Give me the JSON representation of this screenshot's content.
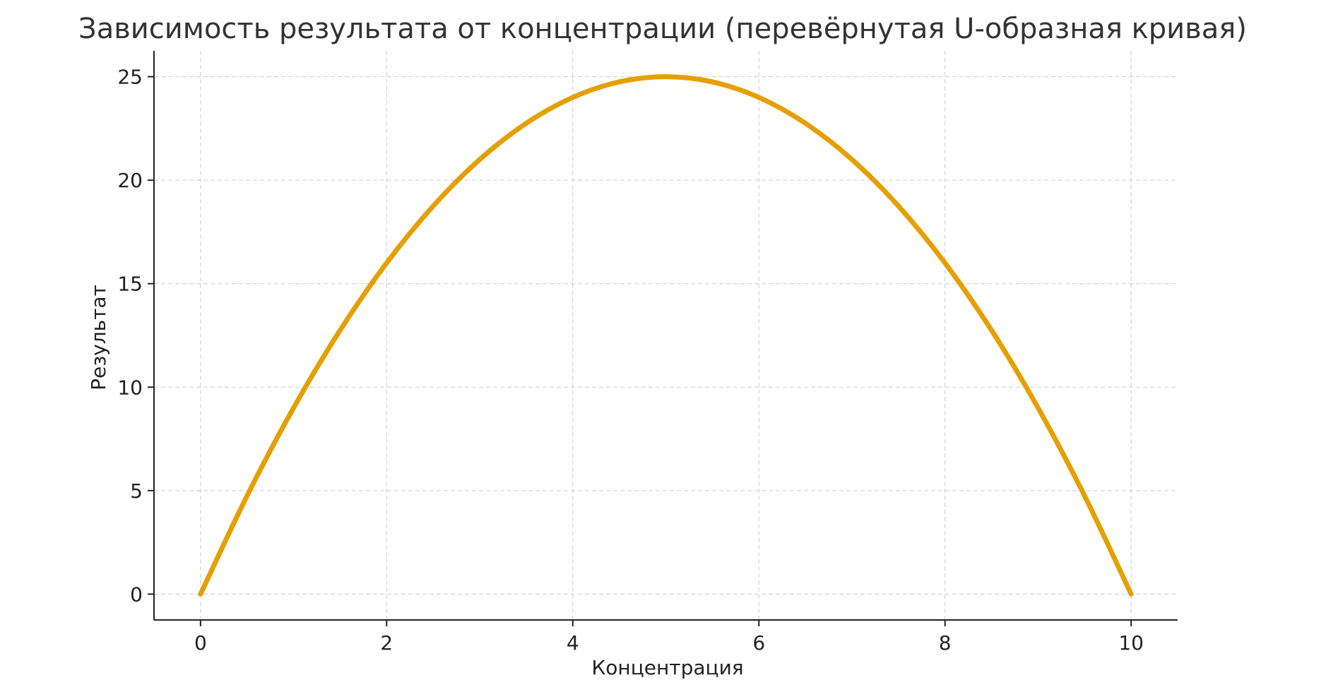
{
  "chart_data": {
    "type": "line",
    "title": "Зависимость результата от концентрации (перевёрнутая U-образная кривая)",
    "xlabel": "Концентрация",
    "ylabel": "Результат",
    "xlim": [
      -0.5,
      10.5
    ],
    "ylim": [
      -1.25,
      26.25
    ],
    "xticks": [
      0,
      2,
      4,
      6,
      8,
      10
    ],
    "yticks": [
      0,
      5,
      10,
      15,
      20,
      25
    ],
    "grid": true,
    "series": [
      {
        "color": "#E69F00",
        "x": [
          0,
          0.5,
          1,
          1.5,
          2,
          2.5,
          3,
          3.5,
          4,
          4.5,
          5,
          5.5,
          6,
          6.5,
          7,
          7.5,
          8,
          8.5,
          9,
          9.5,
          10
        ],
        "y": [
          0,
          4.75,
          9,
          12.75,
          16,
          18.75,
          21,
          22.75,
          24,
          24.75,
          25,
          24.75,
          24,
          22.75,
          21,
          18.75,
          16,
          12.75,
          9,
          4.75,
          0
        ]
      }
    ]
  }
}
